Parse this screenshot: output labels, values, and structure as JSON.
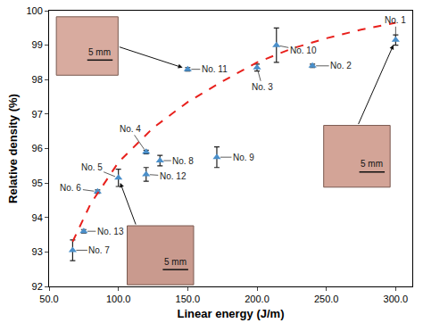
{
  "chart_data": {
    "type": "scatter",
    "xlabel": "Linear energy (J/m)",
    "ylabel": "Relative density (%)",
    "xlim": [
      50,
      312
    ],
    "xticks": [
      {
        "value": 50,
        "label": "50.0"
      },
      {
        "value": 100,
        "label": "100.0"
      },
      {
        "value": 150,
        "label": "150.0"
      },
      {
        "value": 200,
        "label": "200.0"
      },
      {
        "value": 250,
        "label": "250.0"
      },
      {
        "value": 300,
        "label": "300.0"
      }
    ],
    "ylim": [
      92,
      100
    ],
    "yticks": [
      92,
      93,
      94,
      95,
      96,
      97,
      98,
      99,
      100
    ],
    "grid": false,
    "series": [
      {
        "type": "scatter",
        "color": "#4a8fca",
        "marker": "triangle-up",
        "labels": [
          "No. 1",
          "No. 2",
          "No. 3",
          "No. 4",
          "No. 5",
          "No. 6",
          "No. 7",
          "No. 8",
          "No. 9",
          "No. 10",
          "No. 11",
          "No. 12",
          "No. 13"
        ],
        "x": [
          300,
          240,
          200,
          120,
          100,
          85,
          67,
          130,
          171,
          214,
          150,
          120,
          75
        ],
        "values": [
          99.15,
          98.4,
          98.35,
          95.9,
          95.15,
          94.75,
          93.05,
          95.65,
          95.75,
          99.0,
          98.3,
          95.25,
          93.6
        ],
        "error": [
          0.15,
          0.05,
          0.1,
          0.05,
          0.25,
          0.05,
          0.3,
          0.15,
          0.3,
          0.5,
          0.05,
          0.2,
          0.05
        ]
      },
      {
        "type": "line",
        "color": "#e8201c",
        "line_style": "dash",
        "x": [
          67,
          80,
          100,
          125,
          150,
          175,
          200,
          225,
          250,
          275,
          300
        ],
        "values": [
          93.3,
          94.4,
          95.6,
          96.6,
          97.35,
          97.95,
          98.5,
          98.9,
          99.2,
          99.45,
          99.65
        ]
      }
    ],
    "annotations": [
      {
        "text": "5 mm",
        "points_to": "No. 11"
      },
      {
        "text": "5 mm",
        "points_to": "No. 1"
      },
      {
        "text": "5 mm",
        "points_to": "No. 5"
      }
    ]
  }
}
